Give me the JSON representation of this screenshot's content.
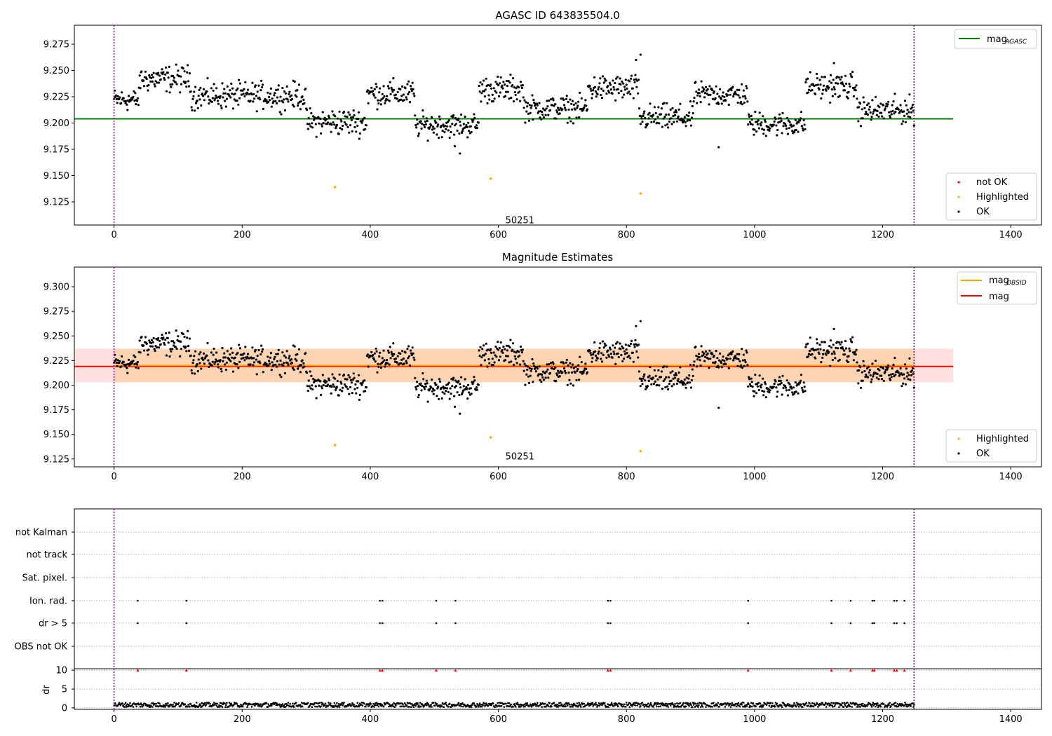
{
  "chart_data": [
    {
      "type": "scatter",
      "title": "AGASC ID 643835504.0",
      "xlim": [
        -62,
        1448
      ],
      "ylim": [
        9.103,
        9.293
      ],
      "x_ticks": [
        0,
        200,
        400,
        600,
        800,
        1000,
        1200,
        1400
      ],
      "x_tick_labels": [
        "0",
        "200",
        "400",
        "600",
        "800",
        "1000",
        "1200",
        "1400"
      ],
      "y_ticks": [
        9.125,
        9.15,
        9.175,
        9.2,
        9.225,
        9.25,
        9.275
      ],
      "y_tick_labels": [
        "9.125",
        "9.150",
        "9.175",
        "9.200",
        "9.225",
        "9.250",
        "9.275"
      ],
      "vlines": [
        0,
        1249
      ],
      "hline": {
        "name": "mag_AGASC",
        "y": 9.204,
        "x_range": [
          -62,
          1310
        ],
        "color": "#008000"
      },
      "annotation": {
        "text": "50251",
        "x": 600,
        "y": 9.108
      },
      "legend_top": [
        {
          "label": "mag",
          "sub": "AGASC",
          "color": "#008000"
        }
      ],
      "legend_bottom": [
        {
          "label": "not OK",
          "color": "#ff0000"
        },
        {
          "label": "Highlighted",
          "color": "#ffa500"
        },
        {
          "label": "OK",
          "color": "#000000"
        }
      ],
      "series": [
        {
          "name": "Highlighted",
          "color": "#ffa500",
          "x": [
            345,
            588,
            822
          ],
          "y": [
            9.139,
            9.147,
            9.133
          ]
        },
        {
          "name": "OK",
          "color": "#000000",
          "segments": [
            {
              "x0": 0,
              "x1": 40,
              "mean": 9.222,
              "amp": 0.01
            },
            {
              "x0": 40,
              "x1": 120,
              "mean": 9.242,
              "amp": 0.012
            },
            {
              "x0": 120,
              "x1": 300,
              "mean": 9.226,
              "amp": 0.012
            },
            {
              "x0": 300,
              "x1": 395,
              "mean": 9.201,
              "amp": 0.012
            },
            {
              "x0": 395,
              "x1": 470,
              "mean": 9.228,
              "amp": 0.012
            },
            {
              "x0": 470,
              "x1": 570,
              "mean": 9.198,
              "amp": 0.011
            },
            {
              "x0": 570,
              "x1": 640,
              "mean": 9.232,
              "amp": 0.012
            },
            {
              "x0": 640,
              "x1": 740,
              "mean": 9.214,
              "amp": 0.011
            },
            {
              "x0": 740,
              "x1": 820,
              "mean": 9.233,
              "amp": 0.012
            },
            {
              "x0": 820,
              "x1": 905,
              "mean": 9.205,
              "amp": 0.012
            },
            {
              "x0": 905,
              "x1": 990,
              "mean": 9.227,
              "amp": 0.011
            },
            {
              "x0": 990,
              "x1": 1080,
              "mean": 9.199,
              "amp": 0.011
            },
            {
              "x0": 1080,
              "x1": 1160,
              "mean": 9.235,
              "amp": 0.012
            },
            {
              "x0": 1160,
              "x1": 1249,
              "mean": 9.212,
              "amp": 0.012
            }
          ],
          "extra_x": [
            822,
            944,
            1124,
            815,
            540,
            532
          ],
          "extra_y": [
            9.265,
            9.177,
            9.257,
            9.26,
            9.171,
            9.178
          ]
        }
      ]
    },
    {
      "type": "scatter",
      "title": "Magnitude Estimates",
      "xlim": [
        -62,
        1448
      ],
      "ylim": [
        9.117,
        9.32
      ],
      "x_ticks": [
        0,
        200,
        400,
        600,
        800,
        1000,
        1200,
        1400
      ],
      "x_tick_labels": [
        "0",
        "200",
        "400",
        "600",
        "800",
        "1000",
        "1200",
        "1400"
      ],
      "y_ticks": [
        9.125,
        9.15,
        9.175,
        9.2,
        9.225,
        9.25,
        9.275,
        9.3
      ],
      "y_tick_labels": [
        "9.125",
        "9.150",
        "9.175",
        "9.200",
        "9.225",
        "9.250",
        "9.275",
        "9.300"
      ],
      "vlines": [
        0,
        1249
      ],
      "band_obsid": {
        "y0": 9.203,
        "y1": 9.237,
        "x_range": [
          0,
          1249
        ],
        "color": "#ffa500"
      },
      "band_mag": {
        "y0": 9.203,
        "y1": 9.237,
        "x_range": [
          -62,
          1310
        ],
        "color": "#ff0000"
      },
      "line_obsid": {
        "name": "mag_OBSID",
        "y": 9.22,
        "x_range": [
          0,
          1249
        ],
        "color": "#ffa500"
      },
      "line_mag": {
        "name": "mag",
        "y": 9.219,
        "x_range": [
          -62,
          1310
        ],
        "color": "#ff0000"
      },
      "annotation": {
        "text": "50251",
        "x": 600,
        "y": 9.128
      },
      "legend_top": [
        {
          "label": "mag",
          "sub": "OBSID",
          "color": "#ffa500"
        },
        {
          "label": "mag",
          "sub": "",
          "color": "#ff0000"
        }
      ],
      "legend_bottom": [
        {
          "label": "Highlighted",
          "color": "#ffa500"
        },
        {
          "label": "OK",
          "color": "#000000"
        }
      ]
    },
    {
      "type": "scatter",
      "title": "",
      "xlim": [
        -62,
        1448
      ],
      "flag_rows": [
        "not Kalman",
        "not track",
        "Sat. pixel.",
        "Ion. rad.",
        "dr > 5",
        "OBS not OK"
      ],
      "flagged_x": [
        37,
        113,
        415,
        419,
        503,
        533,
        771,
        775,
        990,
        1120,
        1150,
        1184,
        1187,
        1218,
        1222,
        1234
      ],
      "flagged_rows": [
        "Ion. rad.",
        "dr > 5"
      ],
      "dr": {
        "ylabel": "dr",
        "ylim": [
          -0.4,
          10.4
        ],
        "y_ticks": [
          0,
          5,
          10
        ],
        "y_tick_labels": [
          "0",
          "5",
          "10"
        ],
        "x_ticks": [
          0,
          200,
          400,
          600,
          800,
          1000,
          1200,
          1400
        ],
        "x_tick_labels": [
          "0",
          "200",
          "400",
          "600",
          "800",
          "1000",
          "1200",
          "1400"
        ],
        "typical_range": [
          0.2,
          1.4
        ],
        "clipped_value": 10,
        "clipped_color": "#ff0000"
      },
      "vlines": [
        0,
        1249
      ]
    }
  ]
}
